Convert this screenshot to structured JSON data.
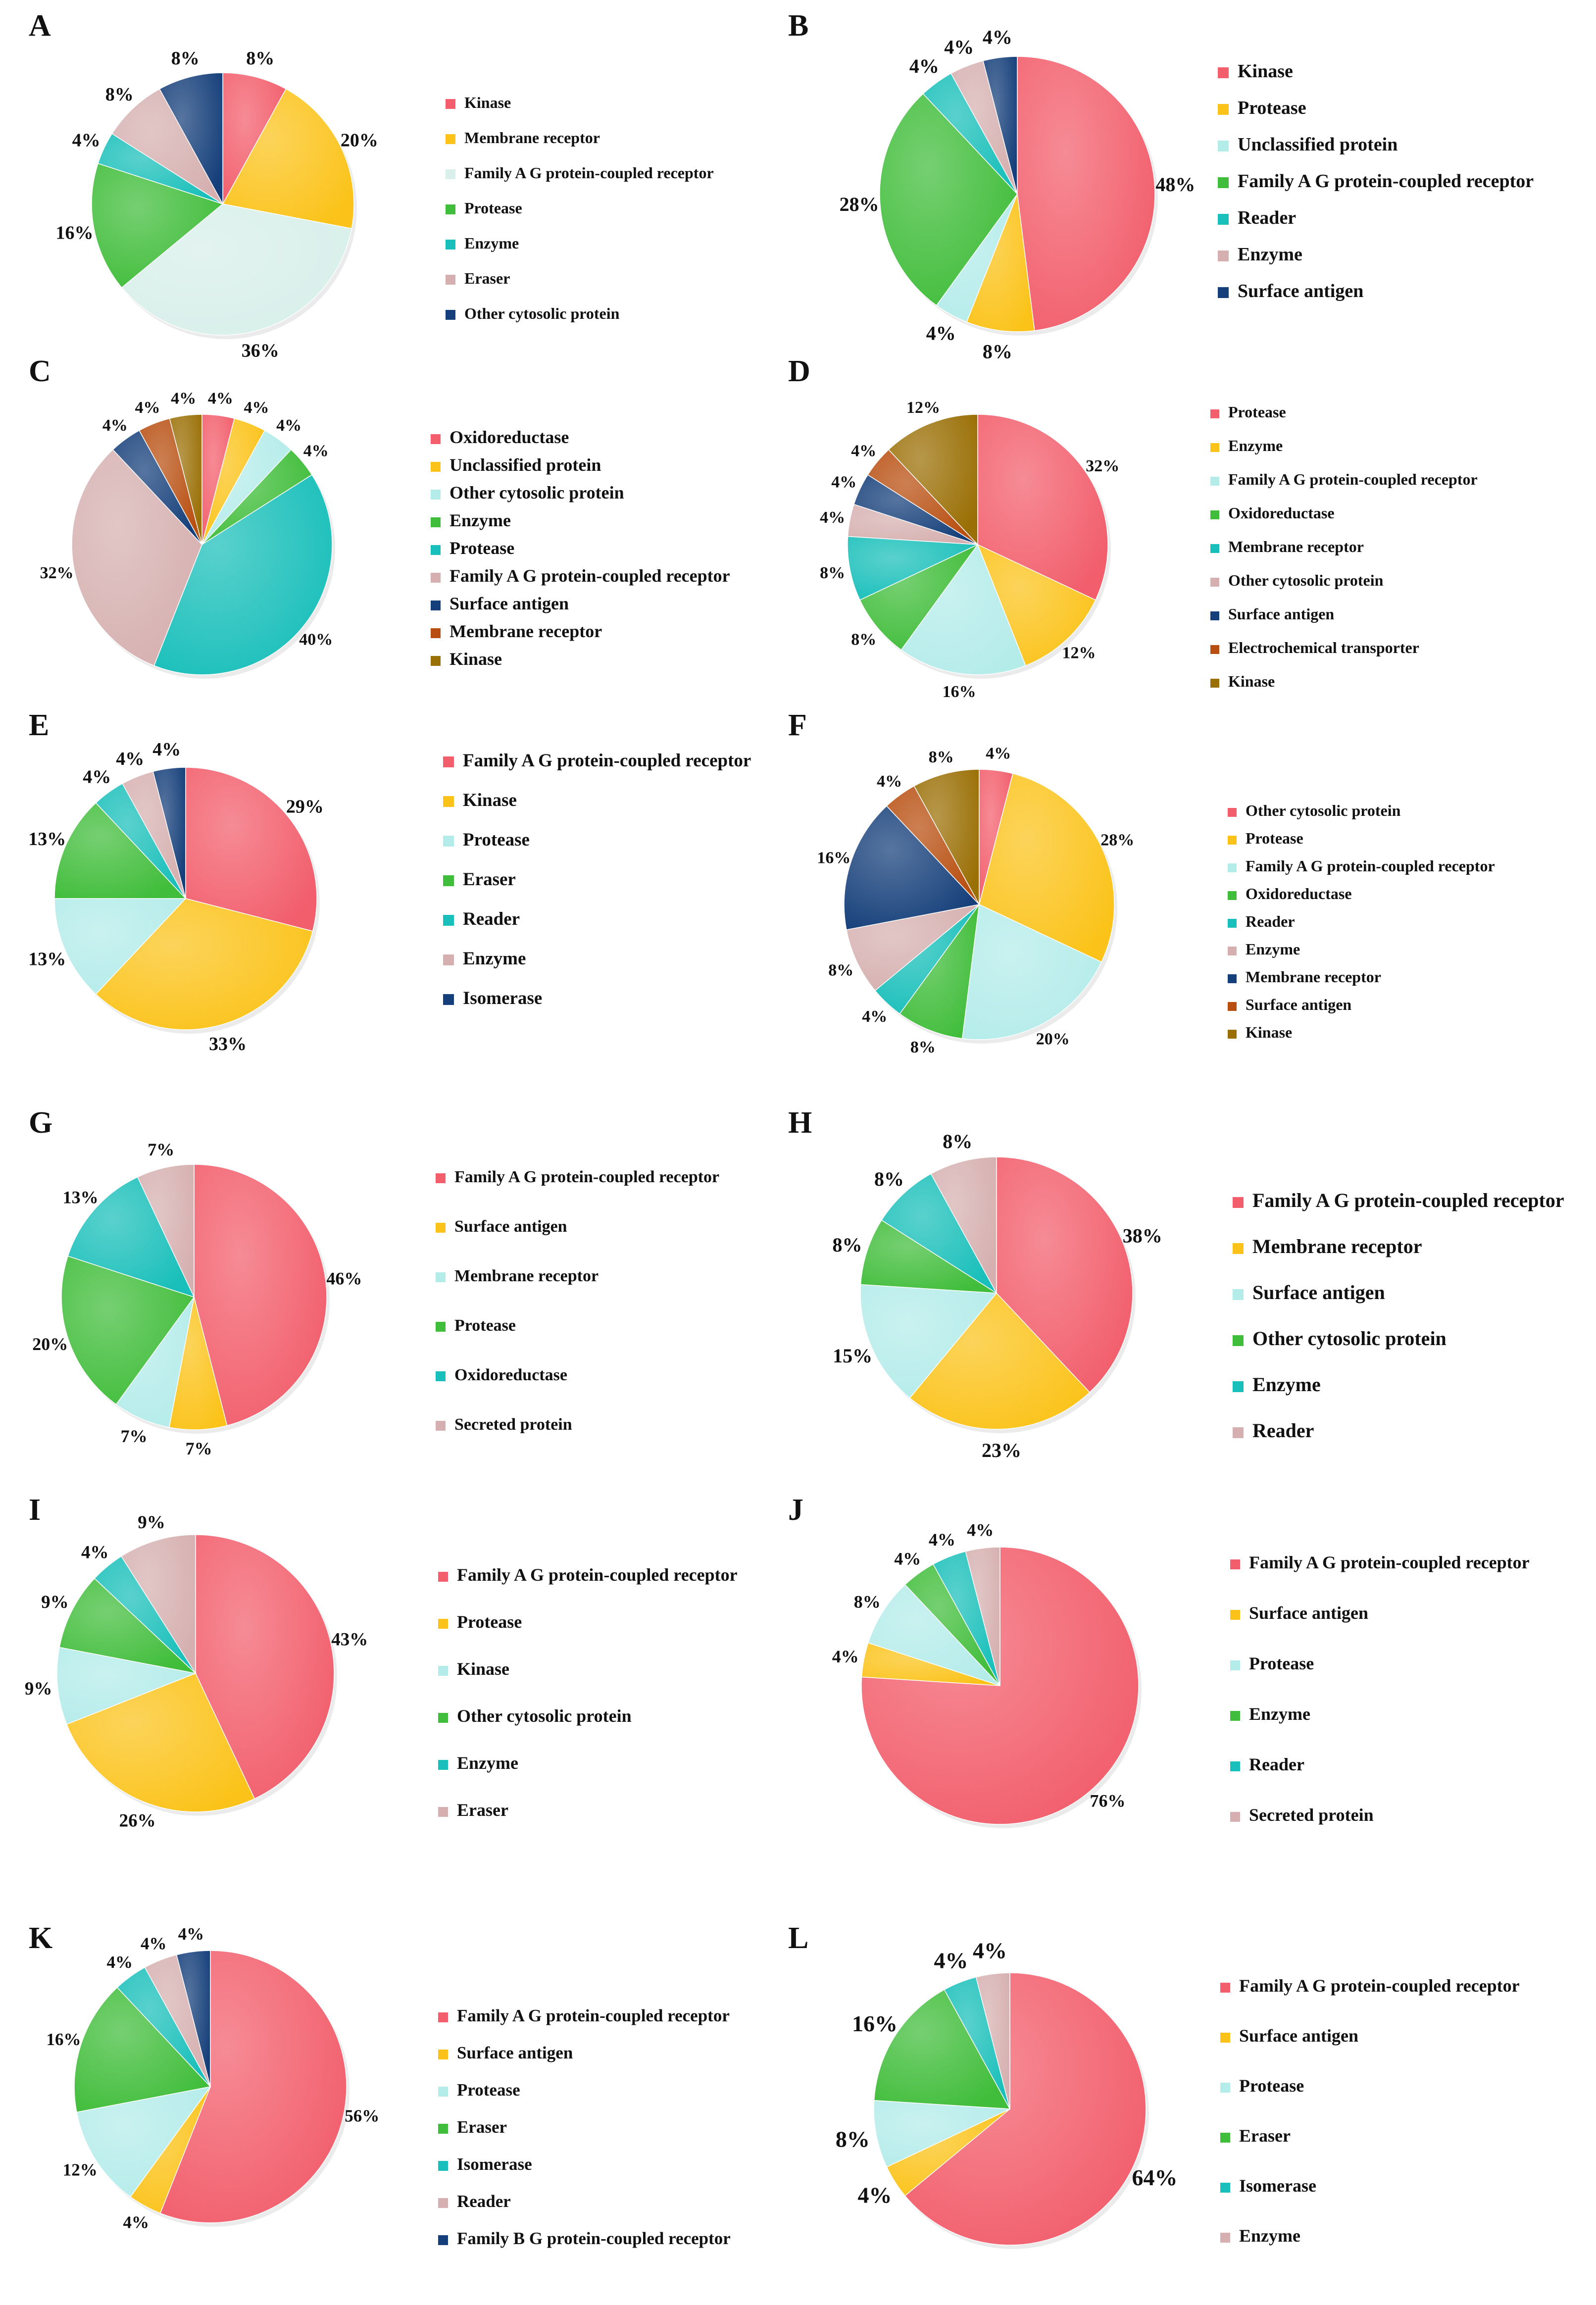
{
  "colors": {
    "Kinase": "#f0636f",
    "Protease": "#fbc31a",
    "Family A G protein-coupled receptor": "#d6ece7",
    "Enzyme": "#2ec4bf",
    "Eraser": "#d6b3b3",
    "Other cytosolic protein": "#173f7a",
    "Unclassified protein": "#b4eeee",
    "Reader": "#17bfbf",
    "Surface antigen": "#173f7a",
    "Oxidoreductase": "#f0636f",
    "Membrane receptor": "#b84e14",
    "Electrochemical transporter": "#b84e14",
    "Isomerase": "#173f7a",
    "Secreted protein": "#d6b3b3",
    "Family B G protein-coupled receptor": "#173f7a",
    "red": "#f25e6c",
    "yellow": "#fbc31a",
    "lightcyan": "#b4ecea",
    "green": "#40bd3a",
    "teal": "#19bfba",
    "rose": "#d6b0b0",
    "navy": "#153f7a",
    "rust": "#b84e10",
    "olive": "#9a6f05",
    "mint": "#d8efea"
  },
  "chart_data": [
    {
      "type": "pie",
      "panel": "A",
      "slices": [
        {
          "label": "Kinase",
          "value": 8,
          "color": "red"
        },
        {
          "label": "Membrane receptor",
          "value": 20,
          "color": "yellow"
        },
        {
          "label": "Family A G protein-coupled receptor",
          "value": 36,
          "color": "mint"
        },
        {
          "label": "Protease",
          "value": 16,
          "color": "green"
        },
        {
          "label": "Enzyme",
          "value": 4,
          "color": "teal"
        },
        {
          "label": "Eraser",
          "value": 8,
          "color": "rose"
        },
        {
          "label": "Other cytosolic protein",
          "value": 8,
          "color": "navy"
        }
      ],
      "pct_labels": [
        "8%",
        "20%",
        "36%",
        "16%",
        "4%",
        "8%",
        "8%"
      ]
    },
    {
      "type": "pie",
      "panel": "B",
      "slices": [
        {
          "label": "Kinase",
          "value": 48,
          "color": "red"
        },
        {
          "label": "Protease",
          "value": 8,
          "color": "yellow"
        },
        {
          "label": "Unclassified protein",
          "value": 4,
          "color": "lightcyan"
        },
        {
          "label": "Family A G protein-coupled receptor",
          "value": 28,
          "color": "green"
        },
        {
          "label": "Reader",
          "value": 4,
          "color": "teal"
        },
        {
          "label": "Enzyme",
          "value": 4,
          "color": "rose"
        },
        {
          "label": "Surface antigen",
          "value": 4,
          "color": "navy"
        }
      ],
      "pct_labels": [
        "48%",
        "8%",
        "4%",
        "28%",
        "4%",
        "4%",
        "4%"
      ]
    },
    {
      "type": "pie",
      "panel": "C",
      "slices": [
        {
          "label": "Oxidoreductase",
          "value": 4,
          "color": "red"
        },
        {
          "label": "Unclassified protein",
          "value": 4,
          "color": "yellow"
        },
        {
          "label": "Other cytosolic protein",
          "value": 4,
          "color": "lightcyan"
        },
        {
          "label": "Enzyme",
          "value": 4,
          "color": "green"
        },
        {
          "label": "Protease",
          "value": 40,
          "color": "teal"
        },
        {
          "label": "Family A G protein-coupled receptor",
          "value": 32,
          "color": "rose"
        },
        {
          "label": "Surface antigen",
          "value": 4,
          "color": "navy"
        },
        {
          "label": "Membrane receptor",
          "value": 4,
          "color": "rust"
        },
        {
          "label": "Kinase",
          "value": 4,
          "color": "olive"
        }
      ],
      "pct_labels": [
        "4%",
        "4%",
        "4%",
        "4%",
        "40%",
        "32%",
        "4%",
        "4%",
        "4%"
      ]
    },
    {
      "type": "pie",
      "panel": "D",
      "slices": [
        {
          "label": "Protease",
          "value": 32,
          "color": "red"
        },
        {
          "label": "Enzyme",
          "value": 12,
          "color": "yellow"
        },
        {
          "label": "Family A G protein-coupled receptor",
          "value": 16,
          "color": "lightcyan"
        },
        {
          "label": "Oxidoreductase",
          "value": 8,
          "color": "green"
        },
        {
          "label": "Membrane receptor",
          "value": 8,
          "color": "teal"
        },
        {
          "label": "Other cytosolic protein",
          "value": 4,
          "color": "rose"
        },
        {
          "label": "Surface antigen",
          "value": 4,
          "color": "navy"
        },
        {
          "label": "Electrochemical transporter",
          "value": 4,
          "color": "rust"
        },
        {
          "label": "Kinase",
          "value": 12,
          "color": "olive"
        }
      ],
      "pct_labels": [
        "32%",
        "12%",
        "16%",
        "8%",
        "8%",
        "4%",
        "4%",
        "4%",
        "12%"
      ]
    },
    {
      "type": "pie",
      "panel": "E",
      "slices": [
        {
          "label": "Family A G protein-coupled receptor",
          "value": 29,
          "color": "red"
        },
        {
          "label": "Kinase",
          "value": 33,
          "color": "yellow"
        },
        {
          "label": "Protease",
          "value": 13,
          "color": "lightcyan"
        },
        {
          "label": "Eraser",
          "value": 13,
          "color": "green"
        },
        {
          "label": "Reader",
          "value": 4,
          "color": "teal"
        },
        {
          "label": "Enzyme",
          "value": 4,
          "color": "rose"
        },
        {
          "label": "Isomerase",
          "value": 4,
          "color": "navy"
        }
      ],
      "pct_labels": [
        "29%",
        "33%",
        "13%",
        "13%",
        "4%",
        "4%",
        "4%"
      ]
    },
    {
      "type": "pie",
      "panel": "F",
      "slices": [
        {
          "label": "Other cytosolic protein",
          "value": 4,
          "color": "red"
        },
        {
          "label": "Protease",
          "value": 28,
          "color": "yellow"
        },
        {
          "label": "Family A G protein-coupled receptor",
          "value": 20,
          "color": "lightcyan"
        },
        {
          "label": "Oxidoreductase",
          "value": 8,
          "color": "green"
        },
        {
          "label": "Reader",
          "value": 4,
          "color": "teal"
        },
        {
          "label": "Enzyme",
          "value": 8,
          "color": "rose"
        },
        {
          "label": "Membrane receptor",
          "value": 16,
          "color": "navy"
        },
        {
          "label": "Surface antigen",
          "value": 4,
          "color": "rust"
        },
        {
          "label": "Kinase",
          "value": 8,
          "color": "olive"
        }
      ],
      "pct_labels": [
        "4%",
        "28%",
        "20%",
        "8%",
        "4%",
        "8%",
        "16%",
        "4%",
        "8%"
      ]
    },
    {
      "type": "pie",
      "panel": "G",
      "slices": [
        {
          "label": "Family A G protein-coupled receptor",
          "value": 46,
          "color": "red"
        },
        {
          "label": "Surface antigen",
          "value": 7,
          "color": "yellow"
        },
        {
          "label": "Membrane receptor",
          "value": 7,
          "color": "lightcyan"
        },
        {
          "label": "Protease",
          "value": 20,
          "color": "green"
        },
        {
          "label": "Oxidoreductase",
          "value": 13,
          "color": "teal"
        },
        {
          "label": "Secreted protein",
          "value": 7,
          "color": "rose"
        }
      ],
      "pct_labels": [
        "46%",
        "7%",
        "7%",
        "20%",
        "13%",
        "7%"
      ]
    },
    {
      "type": "pie",
      "panel": "H",
      "slices": [
        {
          "label": "Family A G protein-coupled receptor",
          "value": 38,
          "color": "red"
        },
        {
          "label": "Membrane receptor",
          "value": 23,
          "color": "yellow"
        },
        {
          "label": "Surface antigen",
          "value": 15,
          "color": "lightcyan"
        },
        {
          "label": "Other cytosolic protein",
          "value": 8,
          "color": "green"
        },
        {
          "label": "Enzyme",
          "value": 8,
          "color": "teal"
        },
        {
          "label": "Reader",
          "value": 8,
          "color": "rose"
        }
      ],
      "pct_labels": [
        "38%",
        "23%",
        "15%",
        "8%",
        "8%",
        "8%"
      ]
    },
    {
      "type": "pie",
      "panel": "I",
      "slices": [
        {
          "label": "Family A G protein-coupled receptor",
          "value": 43,
          "color": "red"
        },
        {
          "label": "Protease",
          "value": 26,
          "color": "yellow"
        },
        {
          "label": "Kinase",
          "value": 9,
          "color": "lightcyan"
        },
        {
          "label": "Other cytosolic protein",
          "value": 9,
          "color": "green"
        },
        {
          "label": "Enzyme",
          "value": 4,
          "color": "teal"
        },
        {
          "label": "Eraser",
          "value": 9,
          "color": "rose"
        }
      ],
      "pct_labels": [
        "43%",
        "26%",
        "9%",
        "9%",
        "4%",
        "9%"
      ]
    },
    {
      "type": "pie",
      "panel": "J",
      "slices": [
        {
          "label": "Family A G protein-coupled receptor",
          "value": 76,
          "color": "red"
        },
        {
          "label": "Surface antigen",
          "value": 4,
          "color": "yellow"
        },
        {
          "label": "Protease",
          "value": 8,
          "color": "lightcyan"
        },
        {
          "label": "Enzyme",
          "value": 4,
          "color": "green"
        },
        {
          "label": "Reader",
          "value": 4,
          "color": "teal"
        },
        {
          "label": "Secreted protein",
          "value": 4,
          "color": "rose"
        }
      ],
      "pct_labels": [
        "76%",
        "4%",
        "8%",
        "4%",
        "4%",
        "4%"
      ]
    },
    {
      "type": "pie",
      "panel": "K",
      "slices": [
        {
          "label": "Family A G protein-coupled receptor",
          "value": 56,
          "color": "red"
        },
        {
          "label": "Surface antigen",
          "value": 4,
          "color": "yellow"
        },
        {
          "label": "Protease",
          "value": 12,
          "color": "lightcyan"
        },
        {
          "label": "Eraser",
          "value": 16,
          "color": "green"
        },
        {
          "label": "Isomerase",
          "value": 4,
          "color": "teal"
        },
        {
          "label": "Reader",
          "value": 4,
          "color": "rose"
        },
        {
          "label": "Family B G protein-coupled receptor",
          "value": 4,
          "color": "navy"
        }
      ],
      "pct_labels": [
        "56%",
        "4%",
        "12%",
        "16%",
        "4%",
        "4%",
        "4%"
      ]
    },
    {
      "type": "pie",
      "panel": "L",
      "slices": [
        {
          "label": "Family A G protein-coupled receptor",
          "value": 64,
          "color": "red"
        },
        {
          "label": "Surface antigen",
          "value": 4,
          "color": "yellow"
        },
        {
          "label": "Protease",
          "value": 8,
          "color": "lightcyan"
        },
        {
          "label": "Eraser",
          "value": 16,
          "color": "green"
        },
        {
          "label": "Isomerase",
          "value": 4,
          "color": "teal"
        },
        {
          "label": "Enzyme",
          "value": 4,
          "color": "rose"
        }
      ],
      "pct_labels": [
        "64%",
        "4%",
        "8%",
        "16%",
        "4%",
        "4%"
      ]
    }
  ]
}
